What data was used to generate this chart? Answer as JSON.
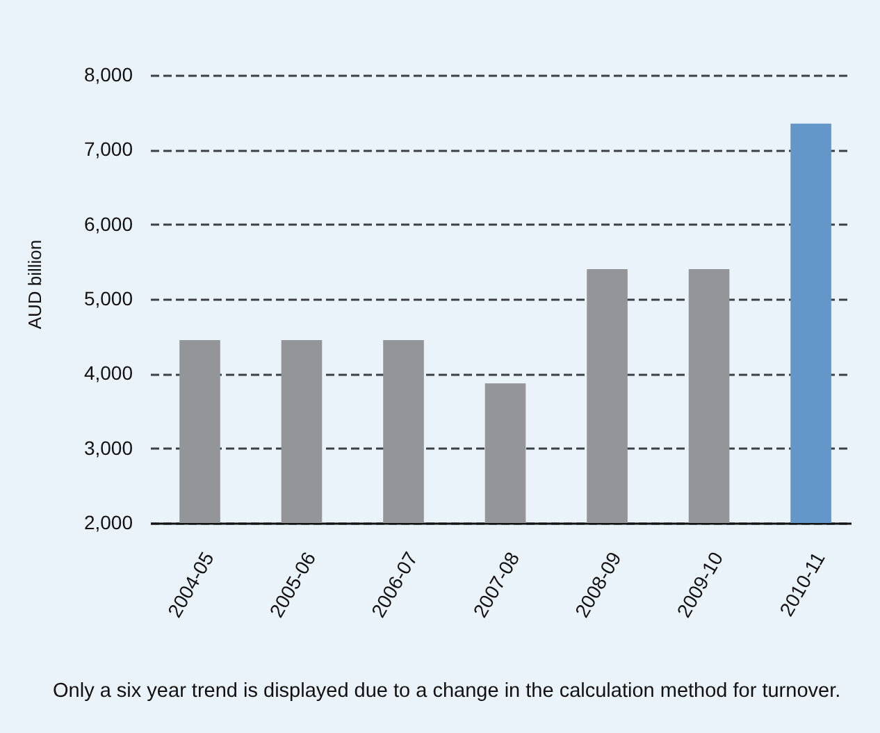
{
  "chart_data": {
    "type": "bar",
    "ylabel": "AUD billion",
    "categories": [
      "2004-05",
      "2005-06",
      "2006-07",
      "2007-08",
      "2008-09",
      "2009-10",
      "2010-11"
    ],
    "values": [
      4450,
      4450,
      4450,
      3870,
      5400,
      5400,
      7350
    ],
    "colors": [
      "#949598",
      "#949598",
      "#949598",
      "#949598",
      "#949598",
      "#949598",
      "#6397c9"
    ],
    "ylim": [
      2000,
      8000
    ],
    "yticks": [
      {
        "value": 2000,
        "label": "2,000"
      },
      {
        "value": 3000,
        "label": "3,000"
      },
      {
        "value": 4000,
        "label": "4,000"
      },
      {
        "value": 5000,
        "label": "5,000"
      },
      {
        "value": 6000,
        "label": "6,000"
      },
      {
        "value": 7000,
        "label": "7,000"
      },
      {
        "value": 8000,
        "label": "8,000"
      }
    ],
    "grid": "y",
    "annotations": [
      "Only a six year trend is displayed due to a change in the calculation method for turnover."
    ]
  }
}
